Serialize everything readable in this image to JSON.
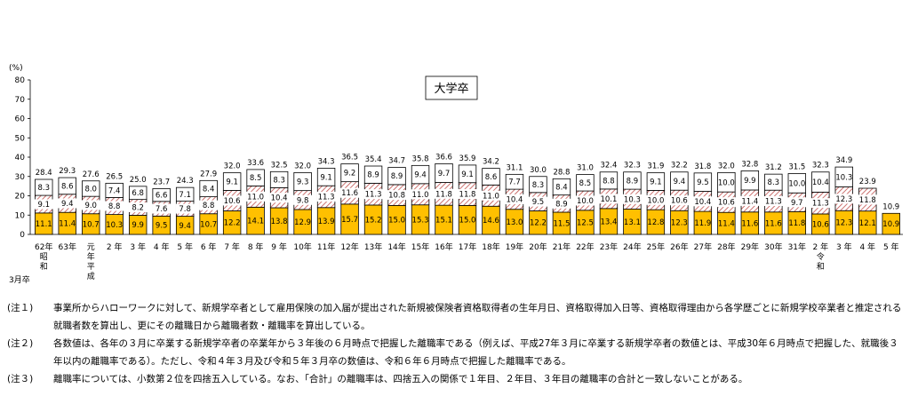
{
  "chart_data": {
    "type": "bar",
    "stacked": true,
    "title": "大学卒",
    "ylabel": "(%)",
    "ylim": [
      0,
      80
    ],
    "yticks": [
      0,
      10,
      20,
      30,
      40,
      50,
      60,
      70,
      80
    ],
    "x_unit_label": "3月卒",
    "categories": [
      [
        "62年",
        "昭",
        "和"
      ],
      [
        "63年"
      ],
      [
        "元",
        "年",
        "平",
        "成"
      ],
      [
        "2 年"
      ],
      [
        "3 年"
      ],
      [
        "4 年"
      ],
      [
        "5 年"
      ],
      [
        "6 年"
      ],
      [
        "7 年"
      ],
      [
        "8 年"
      ],
      [
        "9 年"
      ],
      [
        "10年"
      ],
      [
        "11年"
      ],
      [
        "12年"
      ],
      [
        "13年"
      ],
      [
        "14年"
      ],
      [
        "15年"
      ],
      [
        "16年"
      ],
      [
        "17年"
      ],
      [
        "18年"
      ],
      [
        "19年"
      ],
      [
        "20年"
      ],
      [
        "21年"
      ],
      [
        "22年"
      ],
      [
        "23年"
      ],
      [
        "24年"
      ],
      [
        "25年"
      ],
      [
        "26年"
      ],
      [
        "27年"
      ],
      [
        "28年"
      ],
      [
        "29年"
      ],
      [
        "30年"
      ],
      [
        "31年"
      ],
      [
        "2 年",
        "令",
        "和"
      ],
      [
        "3 年"
      ],
      [
        "4 年"
      ],
      [
        "5 年"
      ]
    ],
    "series": [
      {
        "values": [
          11.1,
          11.4,
          10.7,
          10.3,
          9.9,
          9.5,
          9.4,
          10.7,
          12.2,
          14.1,
          13.8,
          12.9,
          13.9,
          15.7,
          15.2,
          15.0,
          15.3,
          15.1,
          15.0,
          14.6,
          13.0,
          12.2,
          11.5,
          12.5,
          13.4,
          13.1,
          12.8,
          12.3,
          11.9,
          11.4,
          11.6,
          11.6,
          11.8,
          10.6,
          12.3,
          12.1,
          10.9
        ]
      },
      {
        "values": [
          9.1,
          9.4,
          9.0,
          8.8,
          8.2,
          7.6,
          7.8,
          8.8,
          10.6,
          11.0,
          10.4,
          9.8,
          11.3,
          11.6,
          11.3,
          10.8,
          11.0,
          11.8,
          11.8,
          11.0,
          10.4,
          9.5,
          8.9,
          10.0,
          10.1,
          10.3,
          10.0,
          10.6,
          10.4,
          10.6,
          11.4,
          11.3,
          9.7,
          11.3,
          12.3,
          11.8,
          null
        ]
      },
      {
        "values": [
          8.3,
          8.6,
          8.0,
          7.4,
          6.8,
          6.6,
          7.1,
          8.4,
          9.1,
          8.5,
          8.3,
          9.3,
          9.1,
          9.2,
          8.9,
          8.9,
          9.4,
          9.7,
          9.1,
          8.6,
          7.7,
          8.3,
          8.4,
          8.5,
          8.8,
          8.9,
          9.1,
          9.4,
          9.5,
          10.0,
          9.9,
          8.3,
          10.0,
          10.4,
          10.3,
          null,
          null
        ]
      }
    ],
    "totals": [
      28.4,
      29.3,
      27.6,
      26.5,
      25.0,
      23.7,
      24.3,
      27.9,
      32.0,
      33.6,
      32.5,
      32.0,
      34.3,
      36.5,
      35.4,
      34.7,
      35.8,
      36.6,
      35.9,
      34.2,
      31.1,
      30.0,
      28.8,
      31.0,
      32.4,
      32.3,
      31.9,
      32.2,
      31.8,
      32.0,
      32.8,
      31.2,
      31.5,
      32.3,
      34.9,
      23.9,
      10.9
    ],
    "colors": {
      "year1": "#FFC000",
      "year2_stripe": "#C0504D",
      "year2_bg": "#FFFFFF",
      "year3": "#FFFFFF",
      "border": "#000000",
      "grid": "#000000"
    }
  },
  "notes": [
    {
      "id": "(注１)",
      "text": "事業所からハローワークに対して、新規学卒者として雇用保険の加入届が提出された新規被保険者資格取得者の生年月日、資格取得加入日等、資格取得理由から各学歴ごとに新規学校卒業者と推定される就職者数を算出し、更にその離職日から離職者数・離職率を算出している。"
    },
    {
      "id": "(注２)",
      "text": "各数値は、各年の３月に卒業する新規学卒者の卒業年から３年後の６月時点で把握した離職率である（例えば、平成27年３月に卒業する新規学卒者の数値とは、平成30年６月時点で把握した、就職後３年以内の離職率である）。ただし、令和４年３月及び令和５年３月卒の数値は、令和６年６月時点で把握した離職率である。"
    },
    {
      "id": "(注３)",
      "text": "離職率については、小数第２位を四捨五入している。なお、「合計」の離職率は、四捨五入の関係で１年目、２年目、３年目の離職率の合計と一致しないことがある。"
    }
  ]
}
